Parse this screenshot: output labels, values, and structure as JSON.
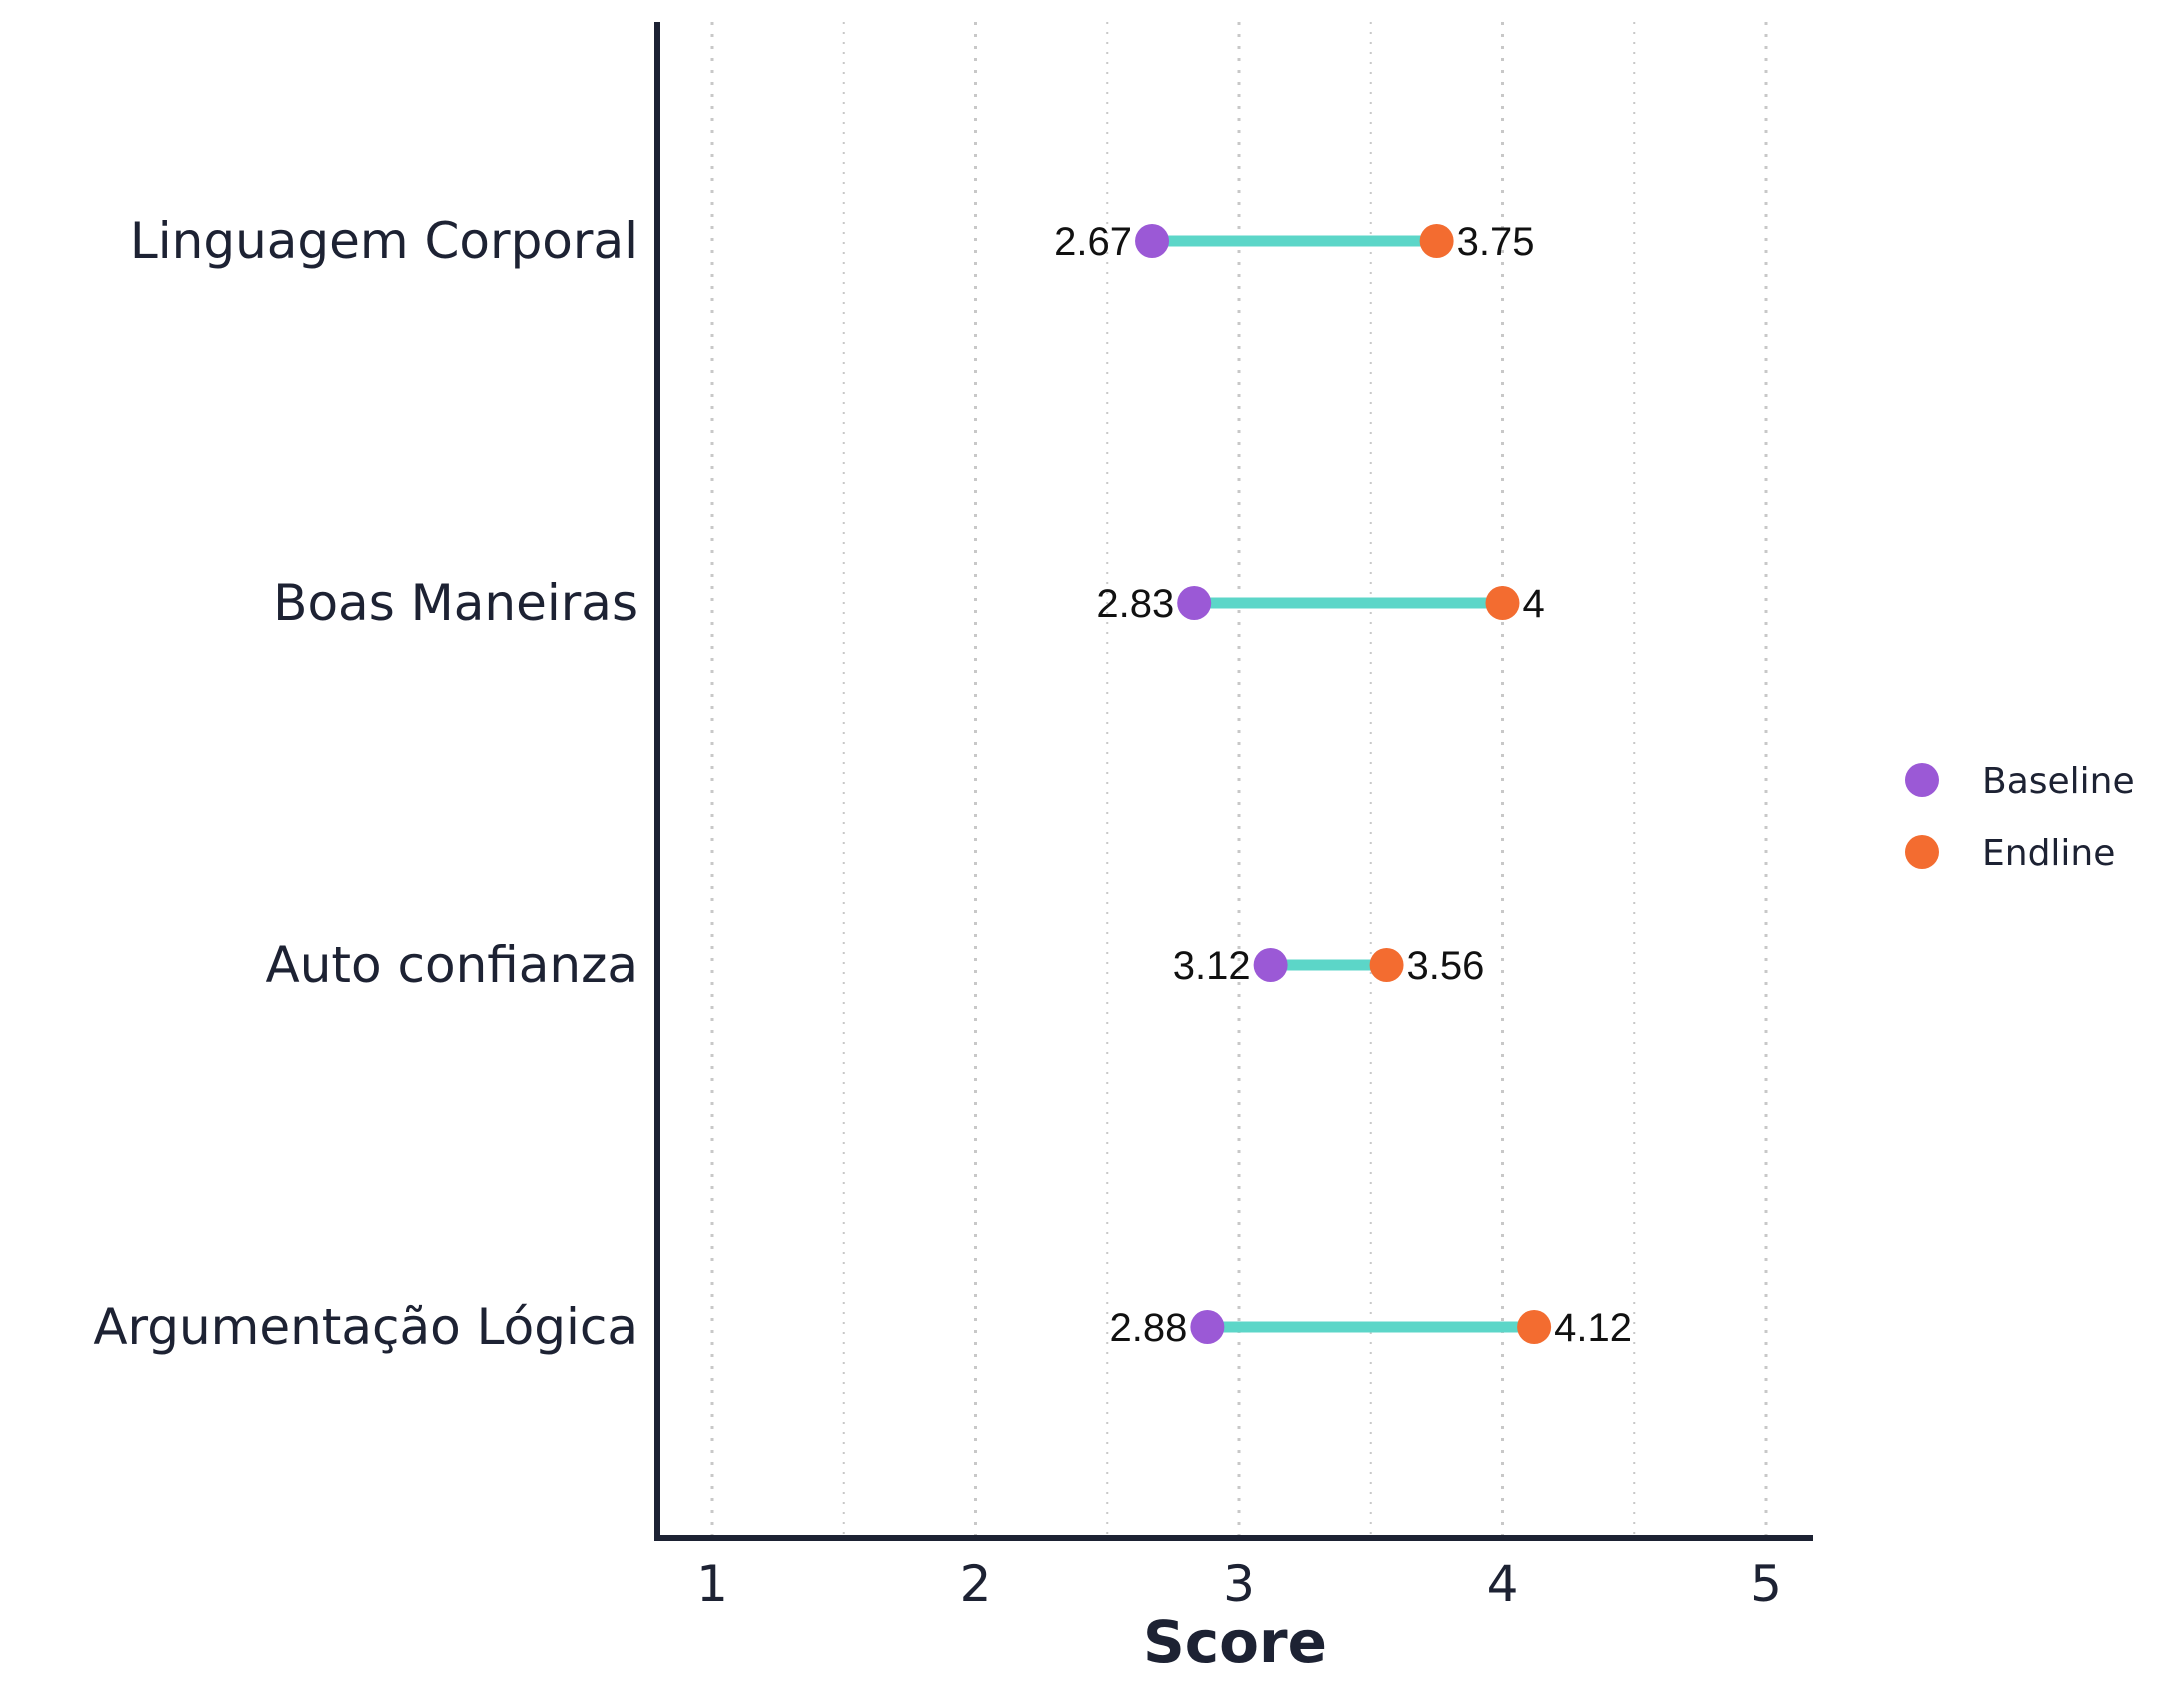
{
  "chart_data": {
    "type": "dumbbell",
    "categories": [
      "Linguagem Corporal",
      "Boas Maneiras",
      "Auto confianza",
      "Argumentação Lógica"
    ],
    "series": [
      {
        "name": "Baseline",
        "values": [
          2.67,
          2.83,
          3.12,
          2.88
        ],
        "labels": [
          "2.67",
          "2.83",
          "3.12",
          "2.88"
        ],
        "color": "#9b59d6"
      },
      {
        "name": "Endline",
        "values": [
          3.75,
          4,
          3.56,
          4.12
        ],
        "labels": [
          "3.75",
          "4",
          "3.56",
          "4.12"
        ],
        "color": "#f36c30"
      }
    ],
    "connector_color": "#5cd6c8",
    "xlabel": "Score",
    "xlim": [
      0.8,
      5.2
    ],
    "xticks": [
      1,
      2,
      3,
      4,
      5
    ],
    "xtick_labels": [
      "1",
      "2",
      "3",
      "4",
      "5"
    ],
    "grid": "vertical-dotted",
    "legend_position": "right"
  },
  "colors": {
    "axis": "#1d2233",
    "grid": "#c8c8c8",
    "background": "#ffffff"
  }
}
